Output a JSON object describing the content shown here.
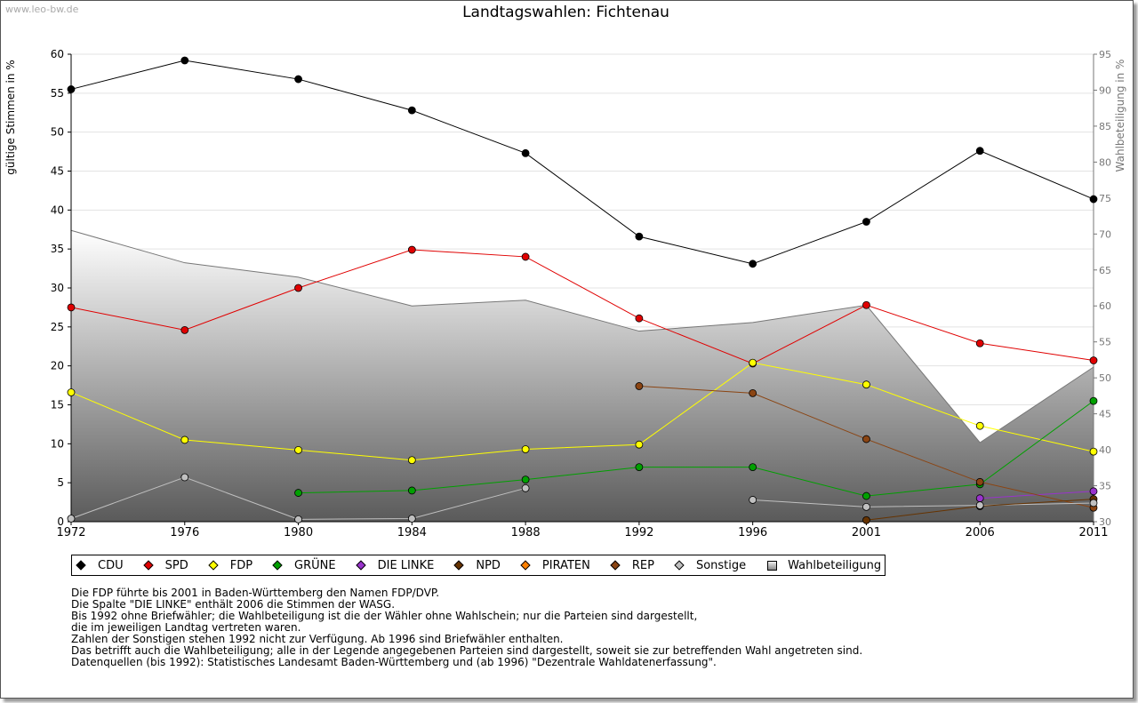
{
  "watermark": "www.leo-bw.de",
  "chart_data": {
    "type": "line",
    "title": "Landtagswahlen: Fichtenau",
    "ylabel": "gültige Stimmen in %",
    "y2label": "Wahlbeteiligung in %",
    "ylim": [
      0,
      60
    ],
    "y2lim": [
      30,
      95
    ],
    "yticks": [
      0,
      5,
      10,
      15,
      20,
      25,
      30,
      35,
      40,
      45,
      50,
      55,
      60
    ],
    "y2ticks": [
      30,
      35,
      40,
      45,
      50,
      55,
      60,
      65,
      70,
      75,
      80,
      85,
      90,
      95
    ],
    "categories": [
      "1972",
      "1976",
      "1980",
      "1984",
      "1988",
      "1992",
      "1996",
      "2001",
      "2006",
      "2011"
    ],
    "series": [
      {
        "name": "CDU",
        "color": "#000000",
        "values": [
          55.5,
          59.2,
          56.8,
          52.8,
          47.3,
          36.6,
          33.1,
          38.5,
          47.6,
          41.4
        ]
      },
      {
        "name": "SPD",
        "color": "#e00000",
        "values": [
          27.5,
          24.6,
          30.0,
          34.9,
          34.0,
          26.1,
          20.3,
          27.8,
          22.9,
          20.7
        ]
      },
      {
        "name": "FDP",
        "color": "#ffff00",
        "values": [
          16.6,
          10.5,
          9.2,
          7.9,
          9.3,
          9.9,
          20.4,
          17.6,
          12.3,
          9.0
        ]
      },
      {
        "name": "GRÜNE",
        "color": "#00a000",
        "values": [
          null,
          null,
          3.7,
          4.0,
          5.4,
          7.0,
          7.0,
          3.3,
          4.8,
          15.5
        ]
      },
      {
        "name": "DIE LINKE",
        "color": "#9933cc",
        "values": [
          null,
          null,
          null,
          null,
          null,
          null,
          null,
          null,
          3.0,
          3.9
        ]
      },
      {
        "name": "NPD",
        "color": "#663300",
        "values": [
          null,
          null,
          null,
          null,
          null,
          null,
          null,
          null,
          null,
          null
        ]
      },
      {
        "name": "PIRATEN",
        "color": "#ff8000",
        "values": [
          null,
          null,
          null,
          null,
          null,
          null,
          null,
          null,
          null,
          null
        ]
      },
      {
        "name": "REP",
        "color": "#8b4513",
        "values": [
          null,
          null,
          null,
          null,
          null,
          17.4,
          16.5,
          10.6,
          5.1,
          1.8
        ]
      },
      {
        "name": "Sonstige",
        "color": "#c0c0c0",
        "values": [
          0.4,
          5.7,
          0.3,
          0.4,
          4.3,
          null,
          2.8,
          1.9,
          2.1,
          2.4
        ]
      }
    ],
    "turnout": {
      "name": "Wahlbeteiligung",
      "values": [
        70.5,
        66.0,
        64.0,
        60.0,
        60.8,
        56.5,
        57.7,
        60.1,
        41.0,
        51.5
      ]
    },
    "extra_markers": [
      {
        "series": "NPD",
        "points": [
          [
            "2001",
            0.2
          ],
          [
            "2006",
            2.0
          ],
          [
            "2011",
            2.9
          ]
        ]
      }
    ],
    "legend": [
      "CDU",
      "SPD",
      "FDP",
      "GRÜNE",
      "DIE LINKE",
      "NPD",
      "PIRATEN",
      "REP",
      "Sonstige",
      "Wahlbeteiligung"
    ]
  },
  "notes": [
    "Die FDP führte bis 2001 in Baden-Württemberg den Namen FDP/DVP.",
    "Die Spalte \"DIE LINKE\" enthält 2006 die Stimmen der WASG.",
    "Bis 1992 ohne Briefwähler; die Wahlbeteiligung ist die der Wähler ohne Wahlschein; nur die Parteien sind dargestellt,",
    "die im jeweiligen Landtag vertreten waren.",
    "Zahlen der Sonstigen stehen 1992 nicht zur Verfügung. Ab 1996 sind Briefwähler enthalten.",
    "Das betrifft auch die Wahlbeteiligung; alle in der Legende angegebenen Parteien sind dargestellt, soweit sie zur betreffenden Wahl angetreten sind.",
    "",
    "Datenquellen (bis 1992): Statistisches Landesamt Baden-Württemberg und (ab 1996) \"Dezentrale Wahldatenerfassung\"."
  ]
}
